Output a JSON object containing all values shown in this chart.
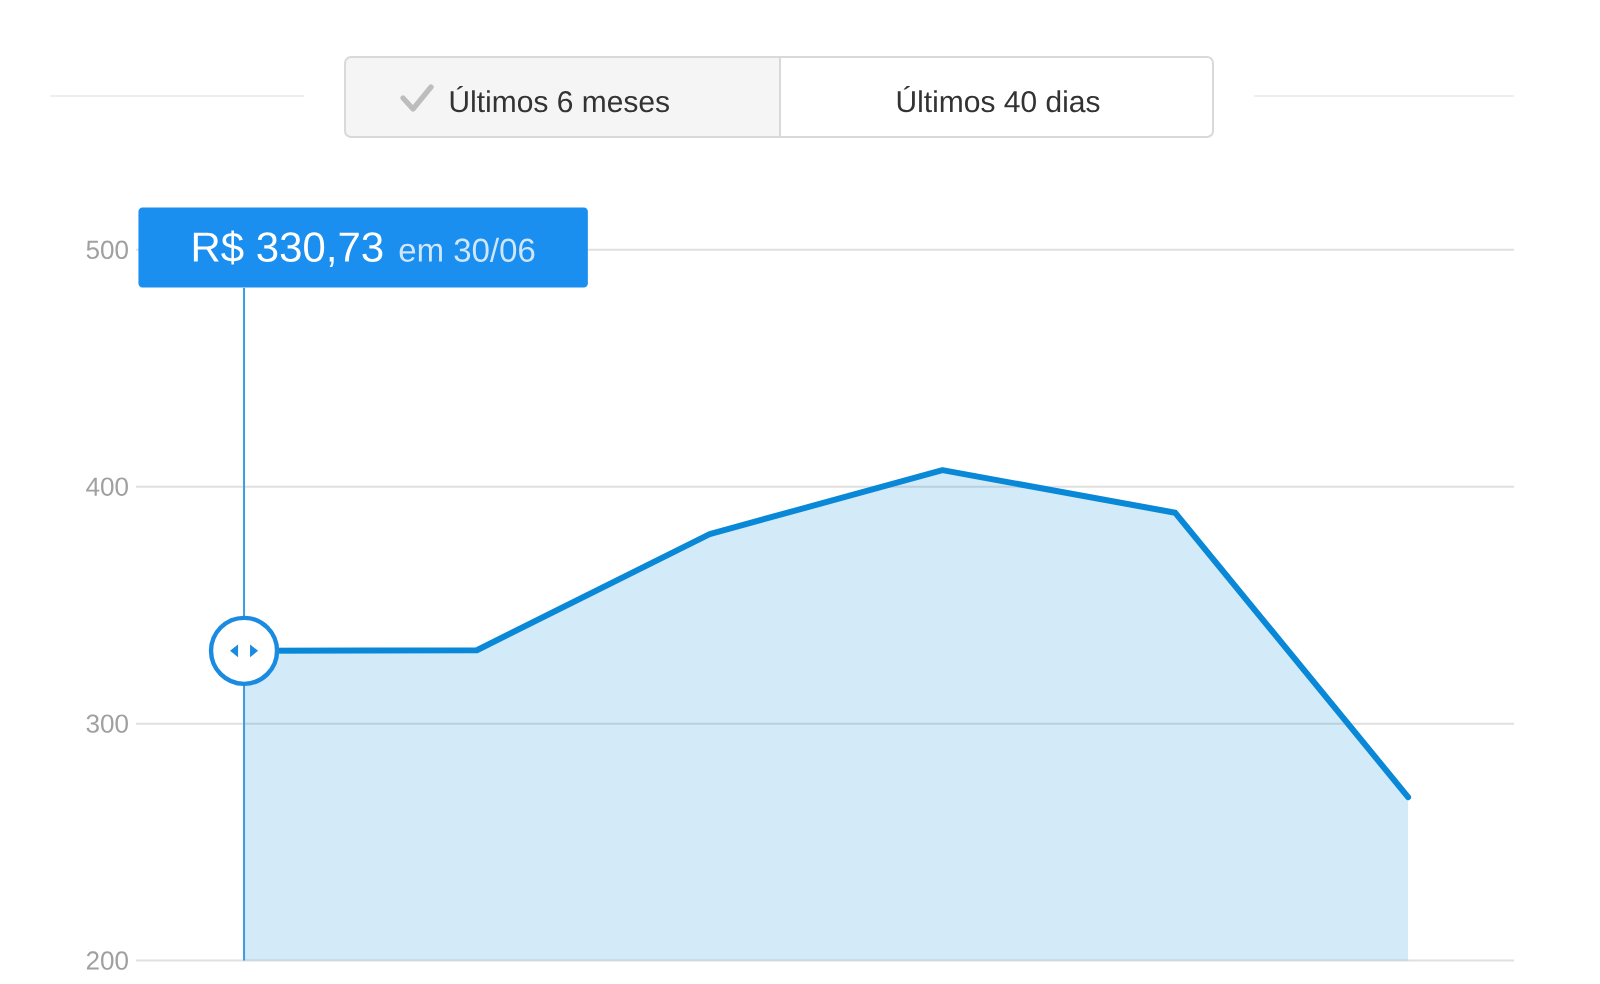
{
  "chart_data": {
    "type": "area",
    "categories": [
      null,
      null,
      null,
      null,
      null,
      null
    ],
    "values": [
      330.73,
      331,
      380,
      407,
      389,
      269
    ],
    "color": "#0a88d8",
    "ylim": [
      200,
      500
    ],
    "yticks": [
      200,
      300,
      400,
      500
    ],
    "grid": "y",
    "annotations": [
      "Últimos 6 meses",
      "Últimos 40 dias",
      "R$ 330,73",
      "em 30/06"
    ]
  }
}
